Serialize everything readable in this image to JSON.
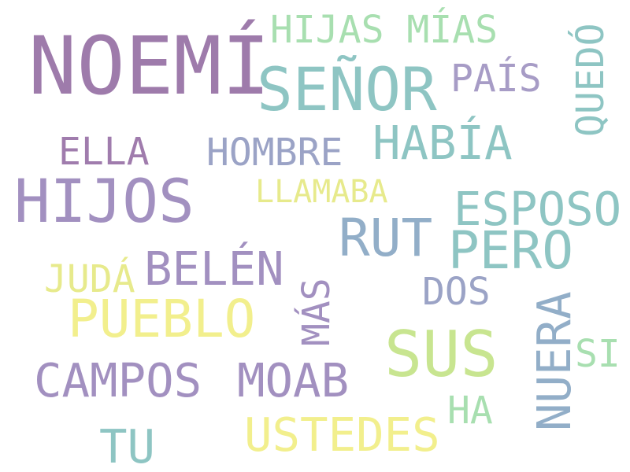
{
  "palette": {
    "purple": "#9e7bab",
    "teal": "#8ec5c3",
    "mint": "#a8dfb0",
    "lavender": "#a79cc6",
    "slate_blue": "#9ba3c6",
    "steel": "#92aec8",
    "yellow": "#f2ef8d",
    "lime": "#c8e590",
    "pale_yellow": "#e7ea8c"
  },
  "words": {
    "noemi": "NOEMÍ",
    "senor": "SEÑOR",
    "hijas_mias": "HIJAS MÍAS",
    "pais": "PAÍS",
    "quedo": "QUEDÓ",
    "ella": "ELLA",
    "hombre": "HOMBRE",
    "habia": "HABÍA",
    "hijos": "HIJOS",
    "llamaba": "LLAMABA",
    "esposo": "ESPOSO",
    "rut": "RUT",
    "pero": "PERO",
    "juda": "JUDÁ",
    "belen": "BELÉN",
    "mas": "MÁS",
    "dos": "DOS",
    "pueblo": "PUEBLO",
    "sus": "SUS",
    "nuera": "NUERA",
    "si": "SI",
    "campos": "CAMPOS",
    "moab": "MOAB",
    "ha": "HA",
    "tu": "TU",
    "ustedes": "USTEDES"
  }
}
